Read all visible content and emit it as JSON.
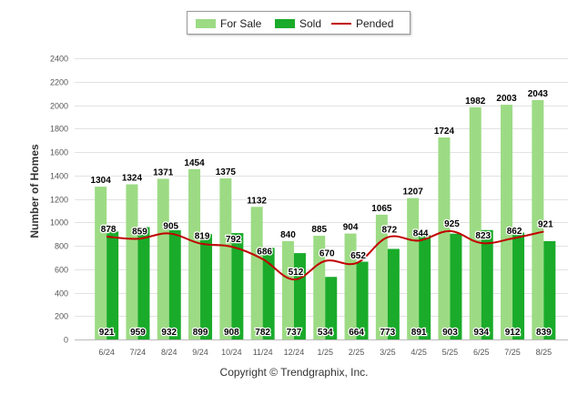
{
  "chart_data": {
    "type": "bar",
    "categories": [
      "6/24",
      "7/24",
      "8/24",
      "9/24",
      "10/24",
      "11/24",
      "12/24",
      "1/25",
      "2/25",
      "3/25",
      "4/25",
      "5/25",
      "6/25",
      "7/25",
      "8/25"
    ],
    "series": [
      {
        "name": "For Sale",
        "kind": "bar",
        "color": "#9cdb84",
        "values": [
          1304,
          1324,
          1371,
          1454,
          1375,
          1132,
          840,
          885,
          904,
          1065,
          1207,
          1724,
          1982,
          2003,
          2043
        ]
      },
      {
        "name": "Sold",
        "kind": "bar",
        "color": "#1aab2a",
        "values": [
          921,
          959,
          932,
          899,
          908,
          782,
          737,
          534,
          664,
          773,
          891,
          903,
          934,
          912,
          839
        ]
      },
      {
        "name": "Pended",
        "kind": "line",
        "color": "#c00000",
        "values": [
          878,
          859,
          905,
          819,
          792,
          686,
          512,
          670,
          652,
          872,
          844,
          925,
          823,
          862,
          921
        ]
      }
    ],
    "ylabel": "Number of Homes",
    "ylim": [
      0,
      2400
    ],
    "yticks": [
      0,
      200,
      400,
      600,
      800,
      1000,
      1200,
      1400,
      1600,
      1800,
      2000,
      2200,
      2400
    ],
    "grid": true,
    "legend_position": "top-center"
  },
  "footer": "Copyright © Trendgraphix, Inc."
}
